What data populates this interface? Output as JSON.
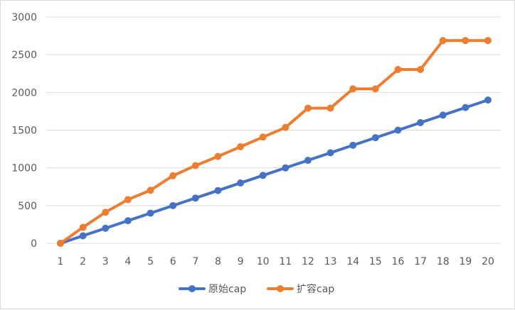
{
  "chart_data": {
    "type": "line",
    "title": "",
    "xlabel": "",
    "ylabel": "",
    "x": [
      1,
      2,
      3,
      4,
      5,
      6,
      7,
      8,
      9,
      10,
      11,
      12,
      13,
      14,
      15,
      16,
      17,
      18,
      19,
      20
    ],
    "ylim": [
      0,
      3000
    ],
    "yticks": [
      0,
      500,
      1000,
      1500,
      2000,
      2500,
      3000
    ],
    "grid": true,
    "legend_position": "bottom",
    "series": [
      {
        "name": "原始cap",
        "color": "#4472c4",
        "values": [
          0,
          100,
          200,
          300,
          400,
          500,
          600,
          700,
          800,
          900,
          1000,
          1100,
          1200,
          1300,
          1400,
          1500,
          1600,
          1700,
          1800,
          1900
        ]
      },
      {
        "name": "扩容cap",
        "color": "#ed7d31",
        "values": [
          0,
          212,
          412,
          580,
          703,
          896,
          1030,
          1152,
          1280,
          1408,
          1536,
          1792,
          1792,
          2048,
          2048,
          2304,
          2304,
          2688,
          2688,
          2688
        ]
      }
    ]
  }
}
